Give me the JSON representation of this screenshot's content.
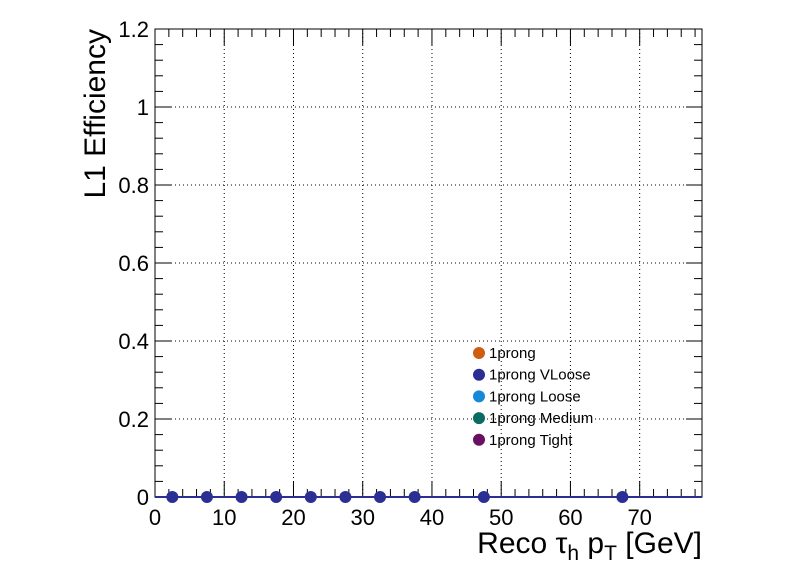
{
  "chart_data": {
    "type": "scatter",
    "ylabel": "L1 Efficiency",
    "xlabel": {
      "prefix": "Reco ",
      "tau": "τ",
      "tau_sub": "h",
      "p": " p",
      "p_sub": "T",
      "suffix": " [GeV]"
    },
    "xlim": [
      0,
      79
    ],
    "ylim": [
      0,
      1.2
    ],
    "xticks": [
      0,
      10,
      20,
      30,
      40,
      50,
      60,
      70
    ],
    "xtick_labels": [
      "0",
      "10",
      "20",
      "30",
      "40",
      "50",
      "60",
      "70"
    ],
    "yticks": [
      0,
      0.2,
      0.4,
      0.6,
      0.8,
      1,
      1.2
    ],
    "ytick_labels": [
      "0",
      "0.2",
      "0.4",
      "0.6",
      "0.8",
      "1",
      "1.2"
    ],
    "grid": true,
    "legend_position": "center-right",
    "series": [
      {
        "name": "1prong",
        "color": "#cc5f0f",
        "x": [],
        "y": []
      },
      {
        "name": "1prong VLoose",
        "color": "#2b2f94",
        "x": [
          2.5,
          7.5,
          12.5,
          17.5,
          22.5,
          27.5,
          32.5,
          37.5,
          47.5,
          67.5
        ],
        "y": [
          0,
          0,
          0,
          0,
          0,
          0,
          0,
          0,
          0,
          0
        ]
      },
      {
        "name": "1prong Loose",
        "color": "#1789d8",
        "x": [],
        "y": []
      },
      {
        "name": "1prong Medium",
        "color": "#0b6b63",
        "x": [],
        "y": []
      },
      {
        "name": "1prong Tight",
        "color": "#6a1063",
        "x": [],
        "y": []
      }
    ]
  }
}
